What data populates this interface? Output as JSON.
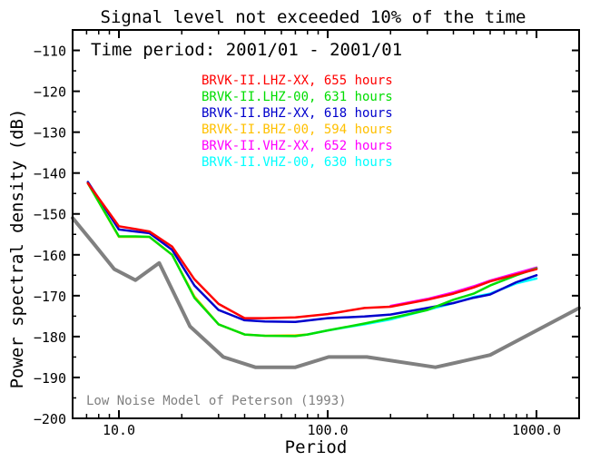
{
  "chart_data": {
    "type": "line",
    "title": "Signal level not exceeded 10% of the time",
    "subtitle": "Time period: 2001/01 - 2001/01",
    "xlabel": "Period",
    "ylabel": "Power spectral density (dB)",
    "x_scale": "log",
    "xlim": [
      6,
      1600
    ],
    "ylim": [
      -200,
      -105
    ],
    "x_ticks": [
      10,
      100,
      1000
    ],
    "x_tick_labels": [
      "10.0",
      "100.0",
      "1000.0"
    ],
    "y_ticks": [
      -110,
      -120,
      -130,
      -140,
      -150,
      -160,
      -170,
      -180,
      -190,
      -200
    ],
    "y_tick_labels": [
      "−110",
      "−120",
      "−130",
      "−140",
      "−150",
      "−160",
      "−170",
      "−180",
      "−190",
      "−200"
    ],
    "grid": false,
    "legend_position": "top-center",
    "annotation": "Low Noise Model of Peterson (1993)",
    "series": [
      {
        "name": "BRVK-II.LHZ-XX, 655 hours",
        "color": "#ff0000",
        "x": [
          7.1,
          10,
          12,
          14,
          18,
          23,
          30,
          40,
          50,
          70,
          100,
          150,
          200,
          300,
          400,
          500,
          600,
          800,
          1000
        ],
        "y": [
          -142.5,
          -153,
          -153.7,
          -154.3,
          -158,
          -166,
          -172,
          -175.5,
          -175.5,
          -175.3,
          -174.5,
          -173,
          -172.7,
          -171,
          -169.5,
          -168,
          -166.5,
          -164.8,
          -163.5
        ]
      },
      {
        "name": "BRVK-II.LHZ-00, 631 hours",
        "color": "#00dd00",
        "x": [
          7.1,
          10,
          12,
          14,
          18,
          23,
          30,
          40,
          50,
          70,
          80,
          100,
          150,
          200,
          300,
          400,
          500,
          600,
          800,
          1000
        ],
        "y": [
          -142.5,
          -155.5,
          -155.5,
          -155.6,
          -160,
          -170.5,
          -177,
          -179.5,
          -179.8,
          -179.9,
          -179.5,
          -178.5,
          -176.8,
          -175.5,
          -173.5,
          -171,
          -169.5,
          -167.5,
          -165,
          -163.3
        ]
      },
      {
        "name": "BRVK-II.BHZ-XX, 618 hours",
        "color": "#0000cc",
        "x": [
          7.1,
          10,
          12,
          14,
          18,
          23,
          30,
          40,
          50,
          70,
          100,
          150,
          200,
          300,
          400,
          500,
          600,
          800,
          1000
        ],
        "y": [
          -142.2,
          -153.8,
          -154.3,
          -154.7,
          -158.8,
          -167.5,
          -173.5,
          -176,
          -176.3,
          -176.4,
          -175.5,
          -175.1,
          -174.6,
          -173,
          -171.8,
          -170.5,
          -169.7,
          -166.7,
          -165
        ]
      },
      {
        "name": "BRVK-II.BHZ-00, 594 hours",
        "color": "#ffc000",
        "x": [
          7.1,
          10,
          12,
          14,
          18,
          23,
          30,
          40,
          50,
          70,
          80
        ],
        "y": [
          -142.5,
          -155.6,
          -155.6,
          -155.6,
          -160,
          -170.2,
          -177,
          -179.5,
          -179.8,
          -179.7,
          -179.5
        ]
      },
      {
        "name": "BRVK-II.VHZ-XX, 652 hours",
        "color": "#ff00ff",
        "x": [
          200,
          300,
          400,
          500,
          600,
          800,
          1000
        ],
        "y": [
          -172.5,
          -170.8,
          -169.2,
          -167.7,
          -166.3,
          -164.5,
          -163.1
        ]
      },
      {
        "name": "BRVK-II.VHZ-00, 630 hours",
        "color": "#00ffff",
        "x": [
          70,
          80,
          100,
          150,
          200,
          300,
          400,
          500,
          600,
          800,
          1000
        ],
        "y": [
          -179.8,
          -179.5,
          -178.5,
          -177,
          -175.8,
          -173.5,
          -171.8,
          -170.3,
          -169.5,
          -167,
          -165.8
        ]
      },
      {
        "color": "#808080",
        "x": [
          6,
          7.5,
          9.5,
          12,
          15.6,
          21.9,
          31.6,
          45,
          70,
          101,
          154,
          328,
          600,
          1600
        ],
        "y": [
          -151,
          -157,
          -163.5,
          -166.2,
          -162,
          -177.5,
          -185,
          -187.5,
          -187.5,
          -185,
          -185,
          -187.5,
          -184.5,
          -173
        ]
      }
    ]
  }
}
